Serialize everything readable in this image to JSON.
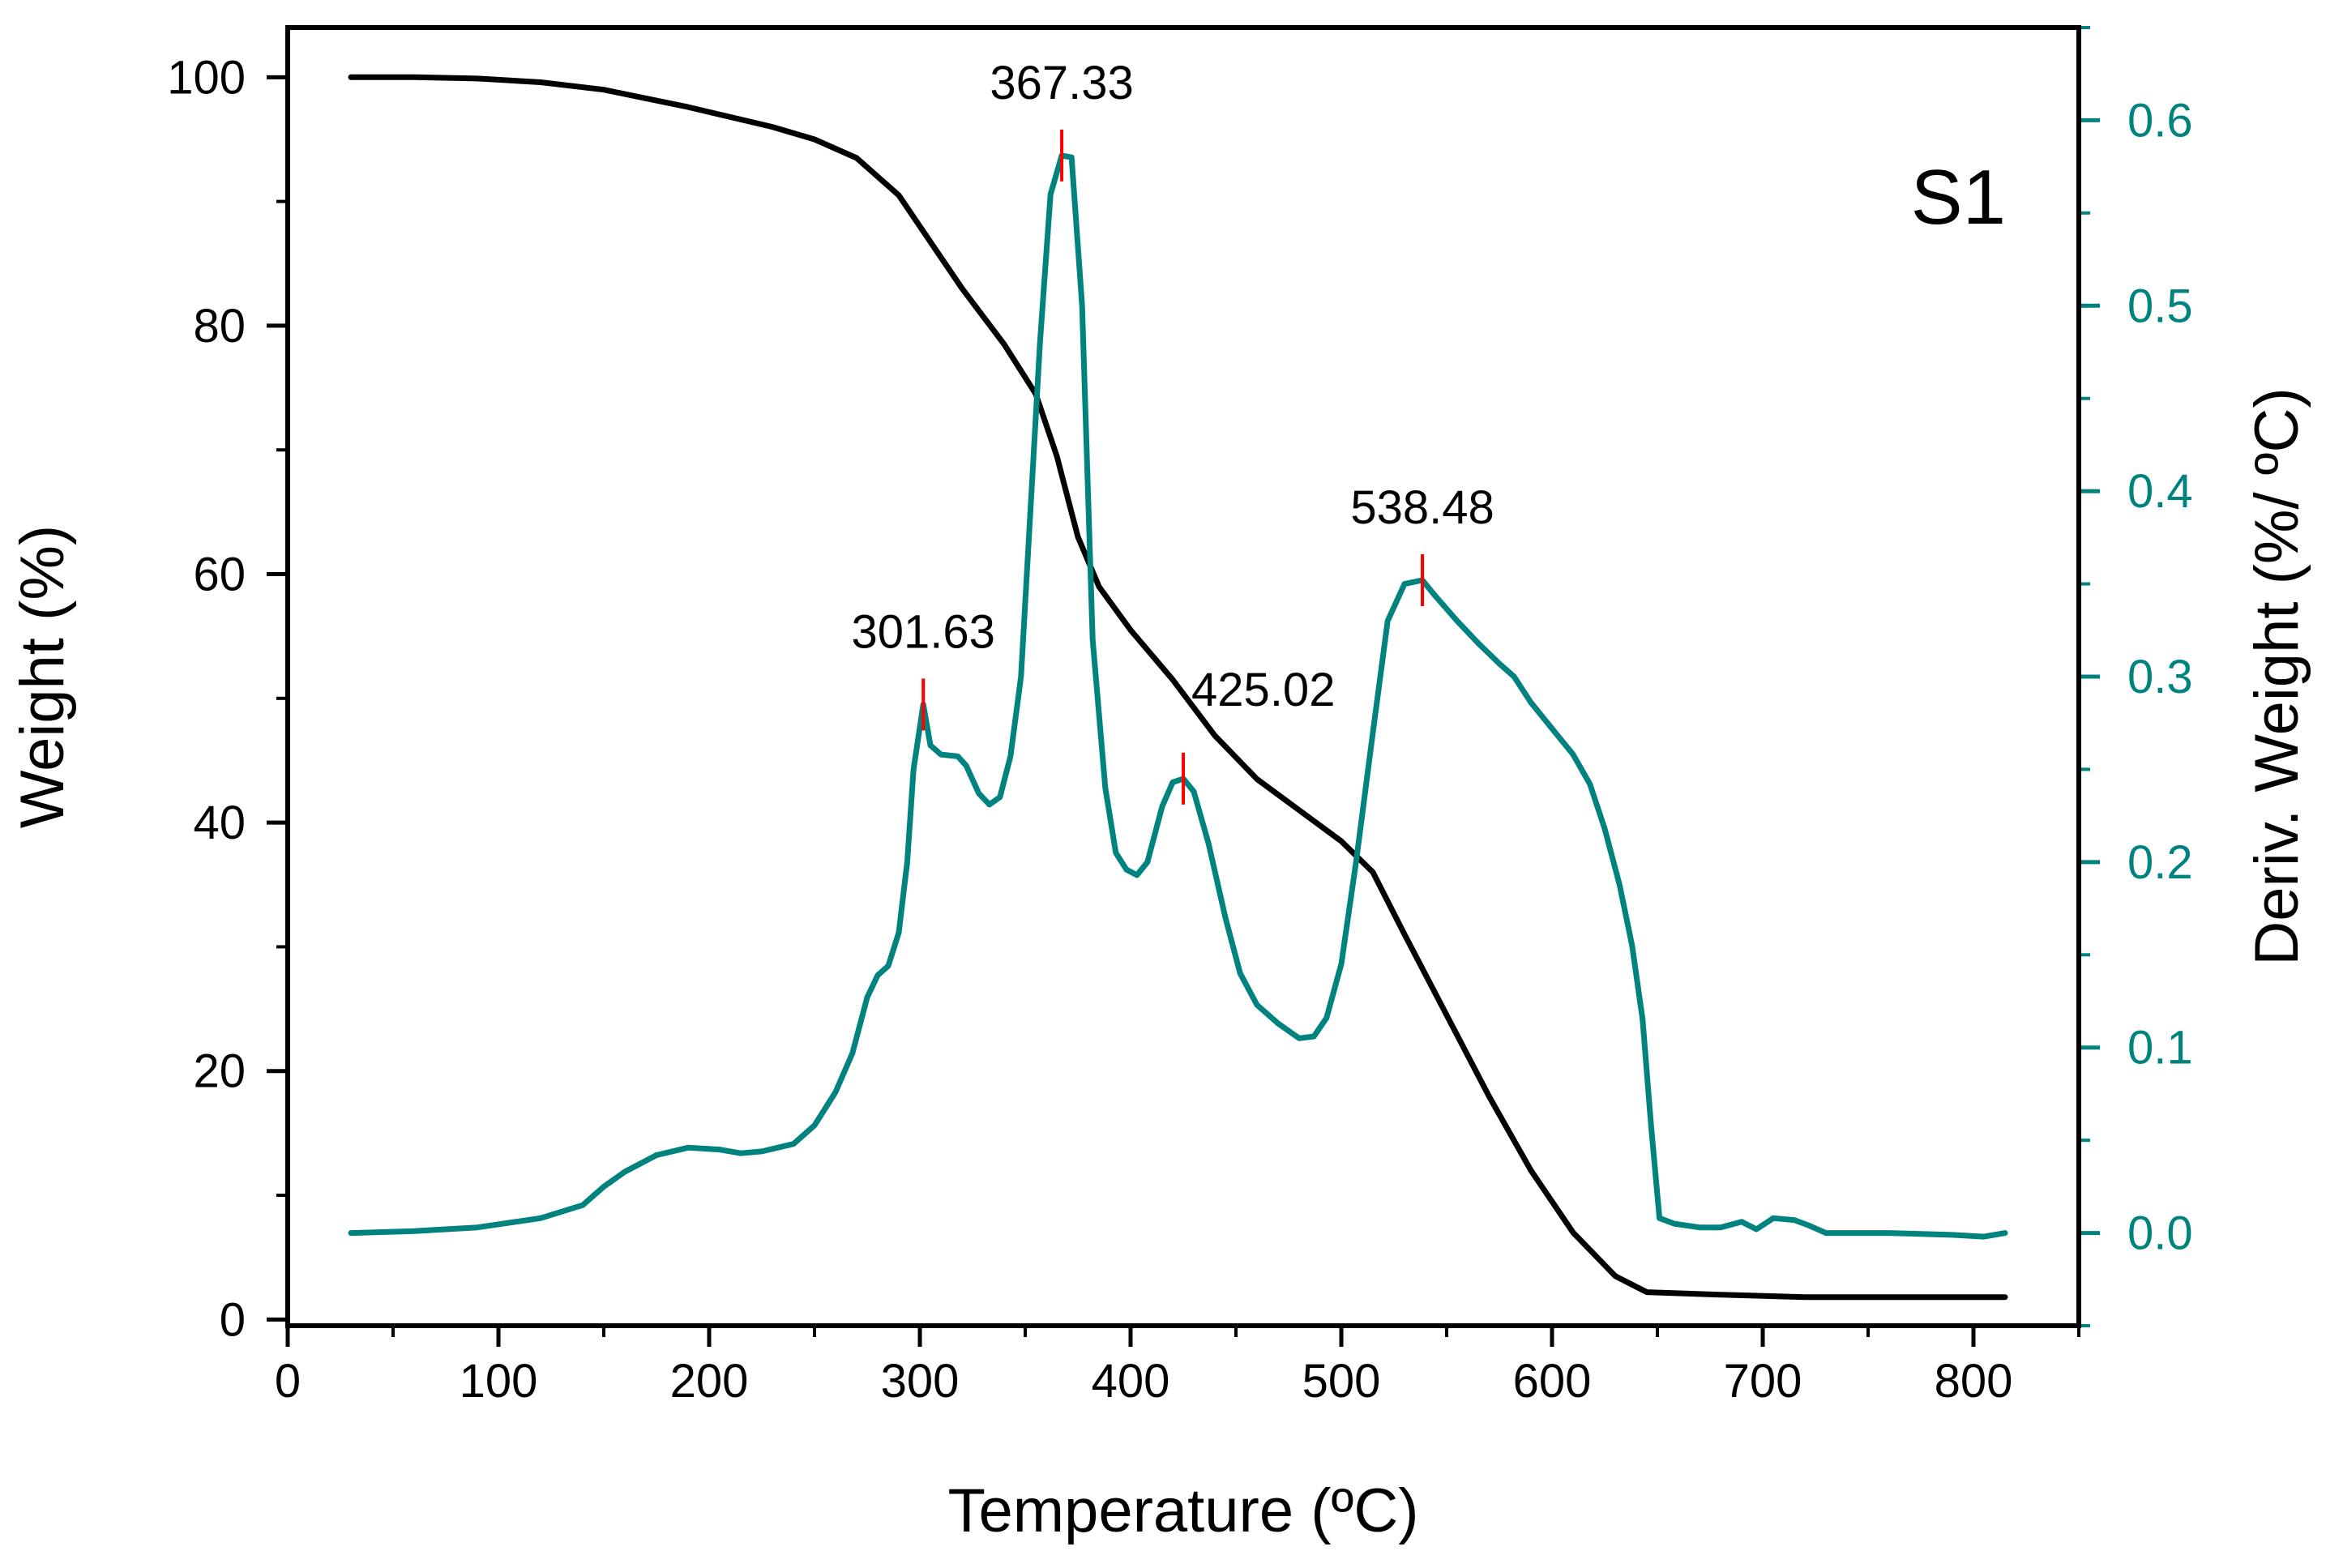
{
  "chart_data": {
    "type": "line",
    "sample_label": "S1",
    "colors": {
      "weight": "#000000",
      "deriv": "#00837f",
      "peak_marker": "#ff0000",
      "frame": "#000000"
    },
    "x_axis": {
      "label": "Temperature (ºC)",
      "lim": [
        0,
        850
      ],
      "major_ticks": [
        0,
        100,
        200,
        300,
        400,
        500,
        600,
        700,
        800
      ],
      "tick_labels": [
        "0",
        "100",
        "200",
        "300",
        "400",
        "500",
        "600",
        "700",
        "800"
      ],
      "minor_ticks": [
        50,
        150,
        250,
        350,
        450,
        550,
        650,
        750,
        850
      ]
    },
    "y_left": {
      "label": "Weight (%)",
      "lim": [
        -0.5,
        104
      ],
      "major_ticks": [
        0,
        20,
        40,
        60,
        80,
        100
      ],
      "tick_labels": [
        "0",
        "20",
        "40",
        "60",
        "80",
        "100"
      ],
      "minor_ticks": [
        10,
        30,
        50,
        70,
        90
      ]
    },
    "y_right": {
      "label": "Deriv. Weight (%/ ºC)",
      "lim": [
        -0.05,
        0.65
      ],
      "major_ticks": [
        0.0,
        0.1,
        0.2,
        0.3,
        0.4,
        0.5,
        0.6
      ],
      "tick_labels": [
        "0.0",
        "0.1",
        "0.2",
        "0.3",
        "0.4",
        "0.5",
        "0.6"
      ],
      "minor_ticks": [
        -0.05,
        0.05,
        0.15,
        0.25,
        0.35,
        0.45,
        0.55,
        0.65
      ]
    },
    "series": [
      {
        "name": "Weight",
        "axis": "left",
        "points": [
          [
            30,
            100
          ],
          [
            60,
            100
          ],
          [
            90,
            99.9
          ],
          [
            120,
            99.6
          ],
          [
            150,
            99
          ],
          [
            170,
            98.3
          ],
          [
            190,
            97.6
          ],
          [
            210,
            96.8
          ],
          [
            230,
            96
          ],
          [
            250,
            95
          ],
          [
            270,
            93.5
          ],
          [
            290,
            90.5
          ],
          [
            300,
            88
          ],
          [
            320,
            83
          ],
          [
            340,
            78.5
          ],
          [
            355,
            74.5
          ],
          [
            365,
            69.5
          ],
          [
            375,
            63
          ],
          [
            385,
            59
          ],
          [
            400,
            55.5
          ],
          [
            420,
            51.5
          ],
          [
            440,
            47
          ],
          [
            460,
            43.5
          ],
          [
            480,
            41
          ],
          [
            500,
            38.5
          ],
          [
            515,
            36
          ],
          [
            530,
            31
          ],
          [
            550,
            24.5
          ],
          [
            570,
            18
          ],
          [
            590,
            12
          ],
          [
            610,
            7
          ],
          [
            630,
            3.5
          ],
          [
            645,
            2.2
          ],
          [
            680,
            2
          ],
          [
            720,
            1.8
          ],
          [
            760,
            1.8
          ],
          [
            800,
            1.8
          ],
          [
            815,
            1.8
          ]
        ]
      },
      {
        "name": "Deriv. Weight",
        "axis": "right",
        "points": [
          [
            30,
            0
          ],
          [
            60,
            0.001
          ],
          [
            90,
            0.003
          ],
          [
            120,
            0.008
          ],
          [
            140,
            0.015
          ],
          [
            150,
            0.025
          ],
          [
            160,
            0.033
          ],
          [
            175,
            0.042
          ],
          [
            190,
            0.046
          ],
          [
            205,
            0.045
          ],
          [
            215,
            0.043
          ],
          [
            225,
            0.044
          ],
          [
            240,
            0.048
          ],
          [
            250,
            0.058
          ],
          [
            260,
            0.076
          ],
          [
            268,
            0.097
          ],
          [
            275,
            0.127
          ],
          [
            280,
            0.139
          ],
          [
            285,
            0.144
          ],
          [
            290,
            0.162
          ],
          [
            294,
            0.2
          ],
          [
            297,
            0.25
          ],
          [
            301.63,
            0.285
          ],
          [
            305,
            0.263
          ],
          [
            310,
            0.258
          ],
          [
            318,
            0.257
          ],
          [
            322,
            0.252
          ],
          [
            328,
            0.237
          ],
          [
            333,
            0.231
          ],
          [
            338,
            0.235
          ],
          [
            343,
            0.257
          ],
          [
            348,
            0.3
          ],
          [
            352,
            0.38
          ],
          [
            357,
            0.48
          ],
          [
            362,
            0.56
          ],
          [
            367.33,
            0.581
          ],
          [
            372,
            0.58
          ],
          [
            377,
            0.5
          ],
          [
            382,
            0.32
          ],
          [
            388,
            0.24
          ],
          [
            393,
            0.205
          ],
          [
            398,
            0.196
          ],
          [
            403,
            0.193
          ],
          [
            408,
            0.2
          ],
          [
            415,
            0.23
          ],
          [
            420,
            0.243
          ],
          [
            425.02,
            0.245
          ],
          [
            430,
            0.238
          ],
          [
            437,
            0.21
          ],
          [
            445,
            0.17
          ],
          [
            452,
            0.14
          ],
          [
            460,
            0.123
          ],
          [
            470,
            0.113
          ],
          [
            480,
            0.105
          ],
          [
            487,
            0.106
          ],
          [
            493,
            0.116
          ],
          [
            500,
            0.145
          ],
          [
            507,
            0.2
          ],
          [
            515,
            0.27
          ],
          [
            522,
            0.33
          ],
          [
            530,
            0.35
          ],
          [
            538.48,
            0.352
          ],
          [
            545,
            0.343
          ],
          [
            555,
            0.33
          ],
          [
            565,
            0.318
          ],
          [
            575,
            0.307
          ],
          [
            582,
            0.3
          ],
          [
            590,
            0.286
          ],
          [
            600,
            0.272
          ],
          [
            610,
            0.258
          ],
          [
            618,
            0.242
          ],
          [
            625,
            0.218
          ],
          [
            632,
            0.188
          ],
          [
            638,
            0.155
          ],
          [
            643,
            0.115
          ],
          [
            647,
            0.058
          ],
          [
            651,
            0.008
          ],
          [
            658,
            0.005
          ],
          [
            670,
            0.003
          ],
          [
            680,
            0.003
          ],
          [
            690,
            0.006
          ],
          [
            697,
            0.002
          ],
          [
            705,
            0.008
          ],
          [
            715,
            0.007
          ],
          [
            722,
            0.004
          ],
          [
            730,
            0
          ],
          [
            760,
            0
          ],
          [
            790,
            -0.001
          ],
          [
            805,
            -0.002
          ],
          [
            815,
            0
          ]
        ]
      }
    ],
    "peak_labels": [
      {
        "text": "301.63",
        "temperature": 301.63,
        "deriv": 0.285
      },
      {
        "text": "367.33",
        "temperature": 367.33,
        "deriv": 0.581
      },
      {
        "text": "425.02",
        "temperature": 425.02,
        "deriv": 0.245
      },
      {
        "text": "538.48",
        "temperature": 538.48,
        "deriv": 0.352
      }
    ]
  }
}
